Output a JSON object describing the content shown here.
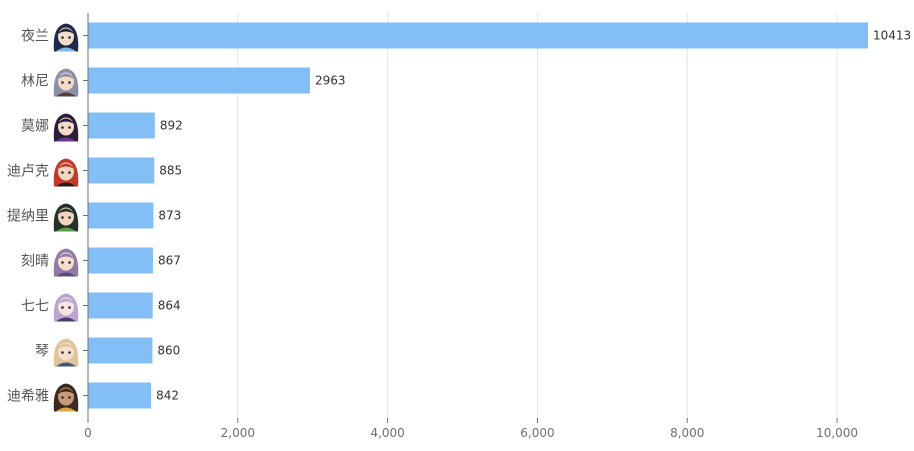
{
  "chart_data": {
    "type": "bar",
    "orientation": "horizontal",
    "categories": [
      "夜兰",
      "林尼",
      "莫娜",
      "迪卢克",
      "提纳里",
      "刻晴",
      "七七",
      "琴",
      "迪希雅"
    ],
    "values": [
      10413,
      2963,
      892,
      885,
      873,
      867,
      864,
      860,
      842
    ],
    "category_icons": [
      "yelan-avatar-icon",
      "lyney-avatar-icon",
      "mona-avatar-icon",
      "diluc-avatar-icon",
      "tighnari-avatar-icon",
      "keqing-avatar-icon",
      "qiqi-avatar-icon",
      "jean-avatar-icon",
      "dehya-avatar-icon"
    ],
    "x_ticks": [
      "0",
      "2,000",
      "4,000",
      "6,000",
      "8,000",
      "10,000"
    ],
    "x_tick_values": [
      0,
      2000,
      4000,
      6000,
      8000,
      10000
    ],
    "xlim": [
      0,
      10413
    ],
    "title": "",
    "xlabel": "",
    "ylabel": "",
    "grid": "vertical",
    "legend": "none",
    "bar_color": "#83bff6",
    "grid_color": "#e0e6f1",
    "axis_color": "#6e7079",
    "label_color": "#333333",
    "tick_label_color": "#6e7079"
  }
}
